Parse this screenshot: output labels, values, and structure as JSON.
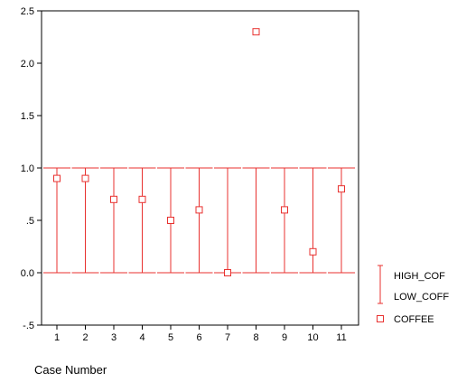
{
  "chart_data": {
    "type": "high-low-close",
    "xlabel": "Case Number",
    "ylabel": "",
    "categories": [
      "1",
      "2",
      "3",
      "4",
      "5",
      "6",
      "7",
      "8",
      "9",
      "10",
      "11"
    ],
    "ylim": [
      -0.5,
      2.5
    ],
    "yticks": [
      -0.5,
      0.0,
      0.5,
      1.0,
      1.5,
      2.0,
      2.5
    ],
    "ytick_labels": [
      "-.5",
      "0.0",
      ".5",
      "1.0",
      "1.5",
      "2.0",
      "2.5"
    ],
    "series": [
      {
        "name": "HIGH_COF",
        "values": [
          1,
          1,
          1,
          1,
          1,
          1,
          1,
          1,
          1,
          1,
          1
        ]
      },
      {
        "name": "LOW_COFF",
        "values": [
          0,
          0,
          0,
          0,
          0,
          0,
          0,
          0,
          0,
          0,
          0
        ]
      },
      {
        "name": "COFFEE",
        "values": [
          0.9,
          0.9,
          0.7,
          0.7,
          0.5,
          0.6,
          0.0,
          2.3,
          0.6,
          0.2,
          0.8
        ]
      }
    ],
    "legend": {
      "placement": "right",
      "entries": [
        "HIGH_COF",
        "LOW_COFF",
        "COFFEE"
      ]
    },
    "grid": false
  },
  "colors": {
    "series": "#e8312f",
    "axis": "#000000"
  }
}
